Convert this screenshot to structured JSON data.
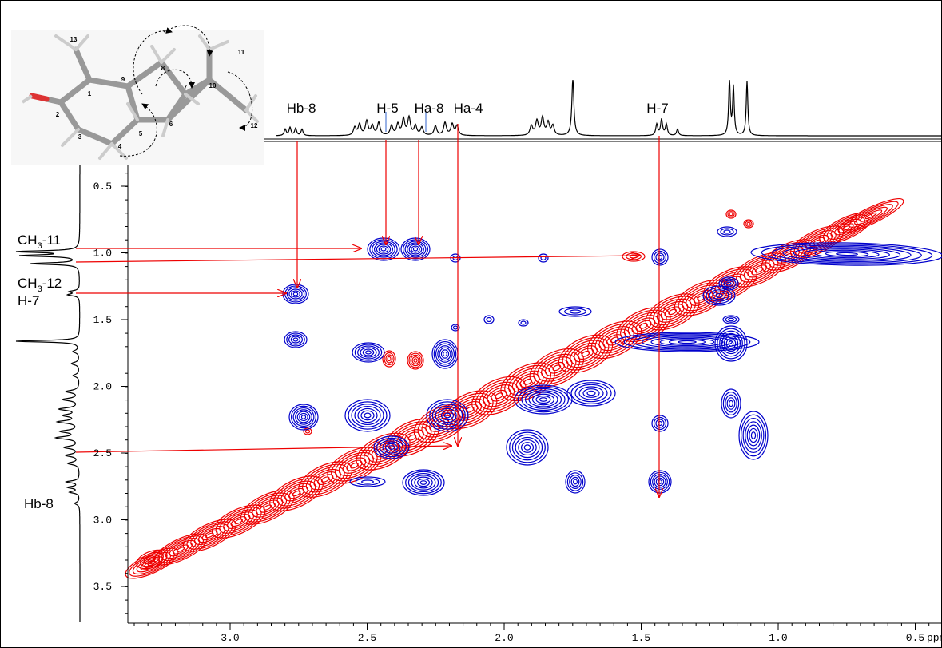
{
  "figure": {
    "top_labels": [
      "Hb-8",
      "H-5",
      "Ha-8",
      "Ha-4",
      "H-7"
    ],
    "left_labels": [
      {
        "main": "CH",
        "sub": "3",
        "suffix": "-11"
      },
      {
        "main": "CH",
        "sub": "3",
        "suffix": "-12"
      },
      {
        "main": "H-7"
      },
      {
        "main": "Hb-8"
      }
    ],
    "x_ticks": [
      "3.0",
      "2.5",
      "2.0",
      "1.5",
      "1.0",
      "0.5"
    ],
    "x_unit": "ppm",
    "y_ticks": [
      "0.5",
      "1.0",
      "1.5",
      "2.0",
      "2.5",
      "3.0",
      "3.5"
    ],
    "atoms": [
      "13",
      "1",
      "2",
      "3",
      "4",
      "5",
      "6",
      "7",
      "8",
      "9",
      "10",
      "11",
      "12"
    ]
  }
}
